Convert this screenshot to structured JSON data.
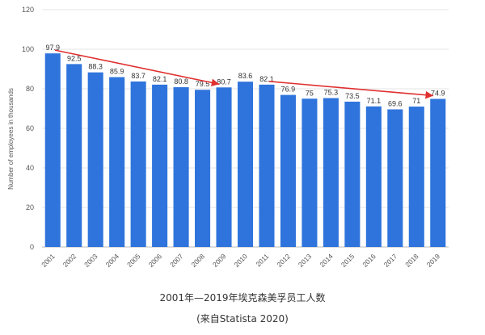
{
  "chart_data": {
    "type": "bar",
    "categories": [
      "2001",
      "2002",
      "2003",
      "2004",
      "2005",
      "2006",
      "2007",
      "2008",
      "2009",
      "2010",
      "2011",
      "2012",
      "2013",
      "2014",
      "2015",
      "2016",
      "2017",
      "2018",
      "2019"
    ],
    "values": [
      97.9,
      92.5,
      88.3,
      85.9,
      83.7,
      82.1,
      80.8,
      79.5,
      80.7,
      83.6,
      82.1,
      76.9,
      75,
      75.3,
      73.5,
      71.1,
      69.6,
      71,
      74.9
    ],
    "value_labels": [
      "97.9",
      "92.5",
      "88.3",
      "85.9",
      "83.7",
      "82.1",
      "80.8",
      "79.5",
      "80.7",
      "83.6",
      "82.1",
      "76.9",
      "75",
      "75.3",
      "73.5",
      "71.1",
      "69.6",
      "71",
      "74.9"
    ],
    "ylabel": "Number of employees in thousands",
    "ylim": [
      0,
      120
    ],
    "yticks": [
      0,
      20,
      40,
      60,
      80,
      100,
      120
    ],
    "grid": true,
    "bar_color": "#2f74dc",
    "trend_arrows": [
      {
        "from": "2001",
        "to": "2009",
        "from_value": 97.9,
        "to_value": 80.7
      },
      {
        "from": "2011",
        "to": "2019",
        "from_value": 82.1,
        "to_value": 74.9
      }
    ],
    "trend_color": "#e03030"
  },
  "caption": {
    "line1": "2001年—2019年埃克森美孚员工人数",
    "line2": "(来自Statista 2020)"
  }
}
